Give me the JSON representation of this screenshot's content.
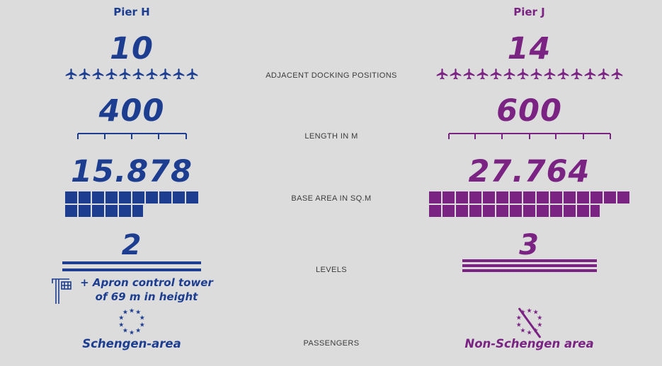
{
  "colors": {
    "pier_h_blue": "#1d3e90",
    "pier_j_purple": "#7a2383",
    "label_gray": "#3b3b3b",
    "background": "#dcdcdc"
  },
  "center_labels": {
    "docking": "ADJACENT DOCKING POSITIONS",
    "length": "LENGTH IN M",
    "area": "BASE AREA IN SQ.M",
    "levels": "LEVELS",
    "passengers": "PASSENGERS"
  },
  "pier_h": {
    "title": "Pier H",
    "docking_value": "10",
    "docking_icon_count": 10,
    "length_value": "400",
    "ruler_segments": 4,
    "area_value": "15.878",
    "area_square_rows": [
      10,
      5.88
    ],
    "levels_value": "2",
    "levels_line_count": 2,
    "tower_note_line1": "+ Apron control tower",
    "tower_note_line2": "of 69 m in height",
    "passenger_zone": "Schengen-area",
    "stars": {
      "count": 10,
      "slash": false
    }
  },
  "pier_j": {
    "title": "Pier J",
    "docking_value": "14",
    "docking_icon_count": 14,
    "length_value": "600",
    "ruler_segments": 6,
    "area_value": "27.764",
    "area_square_rows": [
      15,
      12.76
    ],
    "levels_value": "3",
    "levels_line_count": 3,
    "passenger_zone": "Non-Schengen area",
    "stars": {
      "count": 10,
      "slash": true
    }
  },
  "chart_data": {
    "type": "table",
    "categories": [
      "Adjacent docking positions",
      "Length in m",
      "Base area in sq.m",
      "Levels",
      "Passengers"
    ],
    "series": [
      {
        "name": "Pier H",
        "values": [
          10,
          400,
          15878,
          2,
          "Schengen-area"
        ],
        "annotation": "+ Apron control tower of 69 m in height"
      },
      {
        "name": "Pier J",
        "values": [
          14,
          600,
          27764,
          3,
          "Non-Schengen area"
        ]
      }
    ]
  }
}
